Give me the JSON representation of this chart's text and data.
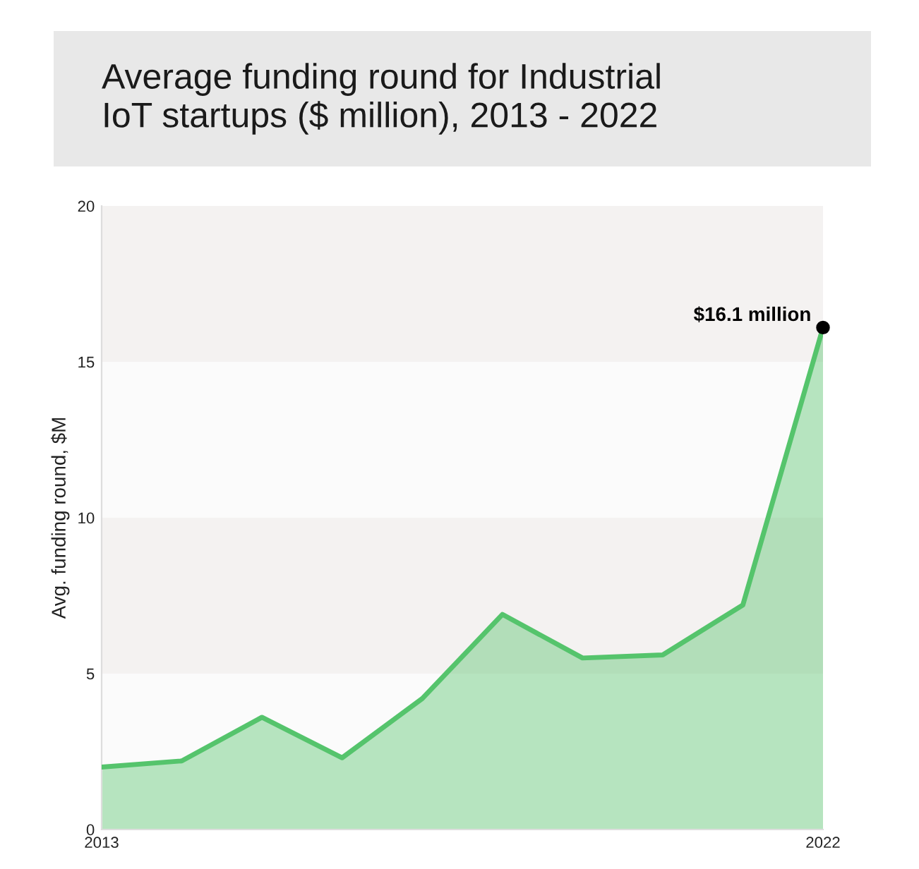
{
  "chart_data": {
    "type": "area",
    "title": "Average funding round for Industrial\nIoT startups ($ million), 2013 - 2022",
    "ylabel": "Avg. funding round, $M",
    "x": [
      2013,
      2014,
      2015,
      2016,
      2017,
      2018,
      2019,
      2020,
      2021,
      2022
    ],
    "series": [
      {
        "color": "#55c46c",
        "values": [
          2.0,
          2.2,
          3.6,
          2.3,
          4.2,
          6.9,
          5.5,
          5.6,
          7.2,
          16.1
        ]
      }
    ],
    "xlim": [
      2013,
      2022
    ],
    "xticks": [
      2013,
      2022
    ],
    "ylim": [
      0,
      20
    ],
    "yticks": [
      0,
      5,
      10,
      15,
      20
    ],
    "bands": [
      {
        "axis": "y",
        "from": 5,
        "to": 10,
        "color": "#f4f2f1"
      },
      {
        "axis": "y",
        "from": 15,
        "to": 20,
        "color": "#f4f2f1"
      }
    ],
    "annotations": [
      {
        "text": "$16.1 million",
        "x": 2022,
        "y": 16.1
      }
    ],
    "grid": false,
    "legend": false
  }
}
